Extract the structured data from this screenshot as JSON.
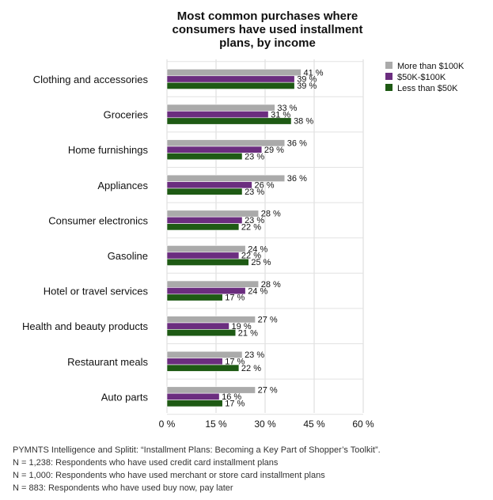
{
  "chart_data": {
    "type": "bar",
    "orientation": "horizontal",
    "title": "Most common purchases where consumers have used installment plans, by income",
    "title_lines": [
      "Most common purchases where",
      "consumers have used installment",
      "plans, by income"
    ],
    "categories": [
      "Clothing and accessories",
      "Groceries",
      "Home furnishings",
      "Appliances",
      "Consumer electronics",
      "Gasoline",
      "Hotel or travel services",
      "Health and beauty products",
      "Restaurant meals",
      "Auto parts"
    ],
    "series": [
      {
        "name": "More than $100K",
        "color": "#aaaaaa",
        "values": [
          41,
          33,
          36,
          36,
          28,
          24,
          28,
          27,
          23,
          27
        ]
      },
      {
        "name": "$50K-$100K",
        "color": "#6b2d7f",
        "values": [
          39,
          31,
          29,
          26,
          23,
          22,
          24,
          19,
          17,
          16
        ]
      },
      {
        "name": "Less than $50K",
        "color": "#1e5a14",
        "values": [
          39,
          38,
          23,
          23,
          22,
          25,
          17,
          21,
          22,
          17
        ]
      }
    ],
    "value_suffix": " %",
    "xlim": [
      0,
      60
    ],
    "xticks": [
      "0 %",
      "15 %",
      "30 %",
      "45 %",
      "60 %"
    ],
    "xtick_values": [
      0,
      15,
      30,
      45,
      60
    ],
    "xlabel": "",
    "ylabel": "",
    "legend_position": "top-right",
    "grid": "vertical"
  },
  "footnotes": [
    "PYMNTS Intelligence and Splitit: “Installment Plans: Becoming a Key Part of Shopper’s Toolkit”.",
    "N = 1,238: Respondents who have used credit card installment plans",
    "N = 1,000: Respondents who have used merchant or store card installment plans",
    "N = 883: Respondents who have used buy now, pay later"
  ]
}
